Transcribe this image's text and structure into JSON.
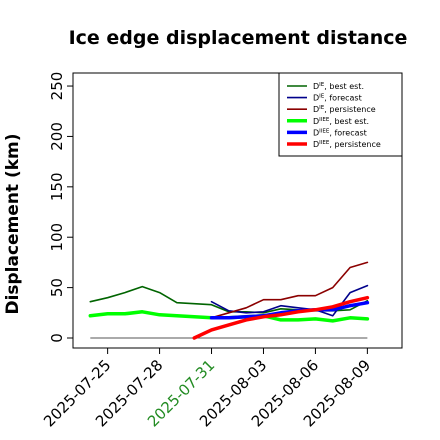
{
  "chart_data": {
    "type": "line",
    "title": "Ice edge displacement distance",
    "xlabel": "",
    "ylabel": "Displacement (km)",
    "ylim": [
      0,
      255
    ],
    "xlim": [
      "2025-07-23",
      "2025-08-11"
    ],
    "yticks": [
      0,
      50,
      100,
      150,
      200,
      250
    ],
    "xticks": [
      "2025-07-25",
      "2025-07-28",
      "2025-07-31",
      "2025-08-03",
      "2025-08-06",
      "2025-08-09"
    ],
    "highlight_tick": "2025-07-31",
    "highlight_color": "#228B22",
    "grid": false,
    "legend_position": "top-right",
    "series": [
      {
        "base": "D",
        "sup": "IE",
        "rest": ", best est.",
        "color": "#006400",
        "width": 1.6,
        "points": [
          [
            "2025-07-24",
            36
          ],
          [
            "2025-07-25",
            40
          ],
          [
            "2025-07-26",
            45
          ],
          [
            "2025-07-27",
            51
          ],
          [
            "2025-07-28",
            45
          ],
          [
            "2025-07-29",
            35
          ],
          [
            "2025-07-30",
            34
          ],
          [
            "2025-07-31",
            33
          ],
          [
            "2025-08-01",
            26
          ],
          [
            "2025-08-02",
            26
          ],
          [
            "2025-08-03",
            25
          ],
          [
            "2025-08-04",
            29
          ],
          [
            "2025-08-05",
            28
          ],
          [
            "2025-08-06",
            27
          ],
          [
            "2025-08-07",
            27
          ],
          [
            "2025-08-08",
            28
          ],
          [
            "2025-08-09",
            37
          ]
        ]
      },
      {
        "base": "D",
        "sup": "IE",
        "rest": ", forecast",
        "color": "#00008B",
        "width": 1.6,
        "points": [
          [
            "2025-07-31",
            36
          ],
          [
            "2025-08-01",
            27
          ],
          [
            "2025-08-02",
            25
          ],
          [
            "2025-08-03",
            26
          ],
          [
            "2025-08-04",
            32
          ],
          [
            "2025-08-05",
            30
          ],
          [
            "2025-08-06",
            28
          ],
          [
            "2025-08-07",
            22
          ],
          [
            "2025-08-08",
            45
          ],
          [
            "2025-08-09",
            52
          ]
        ]
      },
      {
        "base": "D",
        "sup": "IE",
        "rest": ", persistence",
        "color": "#8B0000",
        "width": 1.6,
        "points": [
          [
            "2025-07-31",
            20
          ],
          [
            "2025-08-01",
            25
          ],
          [
            "2025-08-02",
            30
          ],
          [
            "2025-08-03",
            38
          ],
          [
            "2025-08-04",
            38
          ],
          [
            "2025-08-05",
            42
          ],
          [
            "2025-08-06",
            42
          ],
          [
            "2025-08-07",
            50
          ],
          [
            "2025-08-08",
            70
          ],
          [
            "2025-08-09",
            75
          ]
        ]
      },
      {
        "base": "D",
        "sup": "IIEE",
        "rest": ", best est.",
        "color": "#00FF00",
        "width": 3.5,
        "points": [
          [
            "2025-07-24",
            22
          ],
          [
            "2025-07-25",
            24
          ],
          [
            "2025-07-26",
            24
          ],
          [
            "2025-07-27",
            26
          ],
          [
            "2025-07-28",
            23
          ],
          [
            "2025-07-29",
            22
          ],
          [
            "2025-07-30",
            21
          ],
          [
            "2025-07-31",
            20
          ],
          [
            "2025-08-01",
            20
          ],
          [
            "2025-08-02",
            21
          ],
          [
            "2025-08-03",
            22
          ],
          [
            "2025-08-04",
            18
          ],
          [
            "2025-08-05",
            18
          ],
          [
            "2025-08-06",
            19
          ],
          [
            "2025-08-07",
            17
          ],
          [
            "2025-08-08",
            20
          ],
          [
            "2025-08-09",
            19
          ]
        ]
      },
      {
        "base": "D",
        "sup": "IIEE",
        "rest": ", forecast",
        "color": "#0000FF",
        "width": 3.5,
        "points": [
          [
            "2025-07-31",
            20
          ],
          [
            "2025-08-01",
            20
          ],
          [
            "2025-08-02",
            21
          ],
          [
            "2025-08-03",
            22
          ],
          [
            "2025-08-04",
            25
          ],
          [
            "2025-08-05",
            27
          ],
          [
            "2025-08-06",
            28
          ],
          [
            "2025-08-07",
            28
          ],
          [
            "2025-08-08",
            32
          ],
          [
            "2025-08-09",
            35
          ]
        ]
      },
      {
        "base": "D",
        "sup": "IIEE",
        "rest": ", persistence",
        "color": "#FF0000",
        "width": 3.5,
        "points": [
          [
            "2025-07-30",
            0
          ],
          [
            "2025-07-31",
            8
          ],
          [
            "2025-08-01",
            13
          ],
          [
            "2025-08-02",
            18
          ],
          [
            "2025-08-03",
            21
          ],
          [
            "2025-08-04",
            23
          ],
          [
            "2025-08-05",
            26
          ],
          [
            "2025-08-06",
            28
          ],
          [
            "2025-08-07",
            31
          ],
          [
            "2025-08-08",
            36
          ],
          [
            "2025-08-09",
            40
          ]
        ]
      }
    ],
    "zero_line_color": "#555555"
  }
}
